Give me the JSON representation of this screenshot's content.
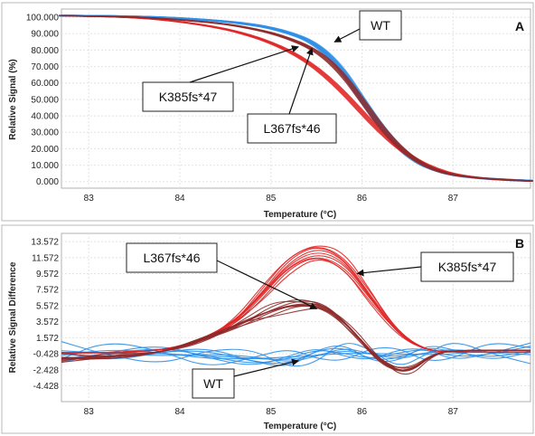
{
  "colors": {
    "wt": "#2f8fe6",
    "k385": "#e02626",
    "l367": "#8e2a2a"
  },
  "chart_data": [
    {
      "type": "line",
      "panel_label": "A",
      "xlabel": "Temperature (°C)",
      "ylabel": "Relative Signal (%)",
      "xlim": [
        82.7,
        87.85
      ],
      "ylim": [
        -4,
        105
      ],
      "x_ticks": [
        83,
        84,
        85,
        86,
        87
      ],
      "y_ticks": [
        0,
        10,
        20,
        30,
        40,
        50,
        60,
        70,
        80,
        90,
        100
      ],
      "y_tick_labels": [
        "0.000",
        "10.000",
        "20.000",
        "30.000",
        "40.000",
        "50.000",
        "60.000",
        "70.000",
        "80.000",
        "90.000",
        "100.000"
      ],
      "grid": true,
      "series": [
        {
          "name": "WT",
          "color_key": "wt",
          "x": [
            82.7,
            83.5,
            84.0,
            84.5,
            84.8,
            85.0,
            85.2,
            85.4,
            85.6,
            85.8,
            86.0,
            86.2,
            86.4,
            86.6,
            86.8,
            87.0,
            87.3,
            87.6,
            87.85
          ],
          "y": [
            101,
            100.5,
            99.5,
            97.5,
            95.5,
            93.5,
            90.5,
            86.5,
            79,
            67,
            50,
            34,
            21,
            12,
            7,
            4,
            2,
            1,
            0.5
          ]
        },
        {
          "name": "K385fs*47",
          "color_key": "k385",
          "x": [
            82.7,
            83.5,
            84.0,
            84.5,
            84.8,
            85.0,
            85.2,
            85.4,
            85.6,
            85.8,
            86.0,
            86.2,
            86.4,
            86.6,
            86.8,
            87.0,
            87.3,
            87.6,
            87.85
          ],
          "y": [
            101,
            100,
            97.5,
            93,
            88.5,
            84.5,
            79.5,
            73,
            64.5,
            54,
            42,
            30.5,
            20.5,
            13,
            8,
            4.5,
            2,
            1,
            0.3
          ]
        },
        {
          "name": "L367fs*46",
          "color_key": "l367",
          "x": [
            82.7,
            83.5,
            84.0,
            84.5,
            84.8,
            85.0,
            85.2,
            85.4,
            85.6,
            85.8,
            86.0,
            86.2,
            86.4,
            86.6,
            86.8,
            87.0,
            87.3,
            87.6,
            87.85
          ],
          "y": [
            101,
            100.3,
            98.5,
            96,
            93,
            90.5,
            87,
            82.5,
            75.5,
            64.5,
            49.5,
            34,
            21.5,
            12.5,
            7,
            4,
            2,
            1,
            0.4
          ]
        }
      ],
      "callouts": [
        {
          "text": "WT",
          "target": [
            85.7,
            85.0
          ]
        },
        {
          "text": "K385fs*47",
          "target": [
            85.3,
            82.0
          ]
        },
        {
          "text": "L367fs*46",
          "target": [
            85.45,
            81.0
          ]
        }
      ]
    },
    {
      "type": "line",
      "panel_label": "B",
      "xlabel": "Temperature (°C)",
      "ylabel": "Relative Signal Difference",
      "xlim": [
        82.7,
        87.85
      ],
      "ylim": [
        -6.4,
        14.6
      ],
      "x_ticks": [
        83,
        84,
        85,
        86,
        87
      ],
      "y_ticks": [
        -4.428,
        -2.428,
        -0.428,
        1.572,
        3.572,
        5.572,
        7.572,
        9.572,
        11.572,
        13.572
      ],
      "y_tick_labels": [
        "-4.428",
        "-2.428",
        "-0.428",
        "1.572",
        "3.572",
        "5.572",
        "7.572",
        "9.572",
        "11.572",
        "13.572"
      ],
      "grid": true,
      "series": [
        {
          "name": "WT",
          "color_key": "wt",
          "x": [
            82.7,
            83.2,
            83.8,
            84.3,
            84.8,
            85.2,
            85.5,
            85.8,
            86.1,
            86.4,
            86.7,
            87.0,
            87.4,
            87.85
          ],
          "y": [
            -0.4,
            -0.2,
            -0.4,
            -0.7,
            -1.0,
            -1.2,
            -0.6,
            0.0,
            -0.5,
            -0.8,
            -0.3,
            -0.2,
            -0.2,
            -0.2
          ]
        },
        {
          "name": "K385fs*47",
          "color_key": "k385",
          "x": [
            82.7,
            83.2,
            83.8,
            84.2,
            84.6,
            84.9,
            85.2,
            85.5,
            85.8,
            86.1,
            86.4,
            86.7,
            87.0,
            87.4,
            87.85
          ],
          "y": [
            -0.3,
            -0.3,
            0.0,
            1.0,
            3.5,
            7.0,
            10.8,
            12.5,
            11.2,
            6.5,
            2.0,
            0.0,
            -0.2,
            -0.2,
            -0.2
          ]
        },
        {
          "name": "L367fs*46",
          "color_key": "l367",
          "x": [
            82.7,
            83.2,
            83.8,
            84.3,
            84.7,
            85.0,
            85.3,
            85.6,
            85.9,
            86.2,
            86.5,
            86.8,
            87.1,
            87.5,
            87.85
          ],
          "y": [
            -1.0,
            -0.8,
            -0.3,
            1.5,
            3.5,
            5.0,
            5.8,
            5.5,
            2.5,
            -1.5,
            -3.0,
            -0.3,
            0.0,
            0.0,
            0.0
          ]
        }
      ],
      "callouts": [
        {
          "text": "L367fs*46",
          "target": [
            85.5,
            5.2
          ]
        },
        {
          "text": "K385fs*47",
          "target": [
            85.95,
            9.6
          ]
        },
        {
          "text": "WT",
          "target": [
            85.3,
            -1.3
          ]
        }
      ]
    }
  ]
}
